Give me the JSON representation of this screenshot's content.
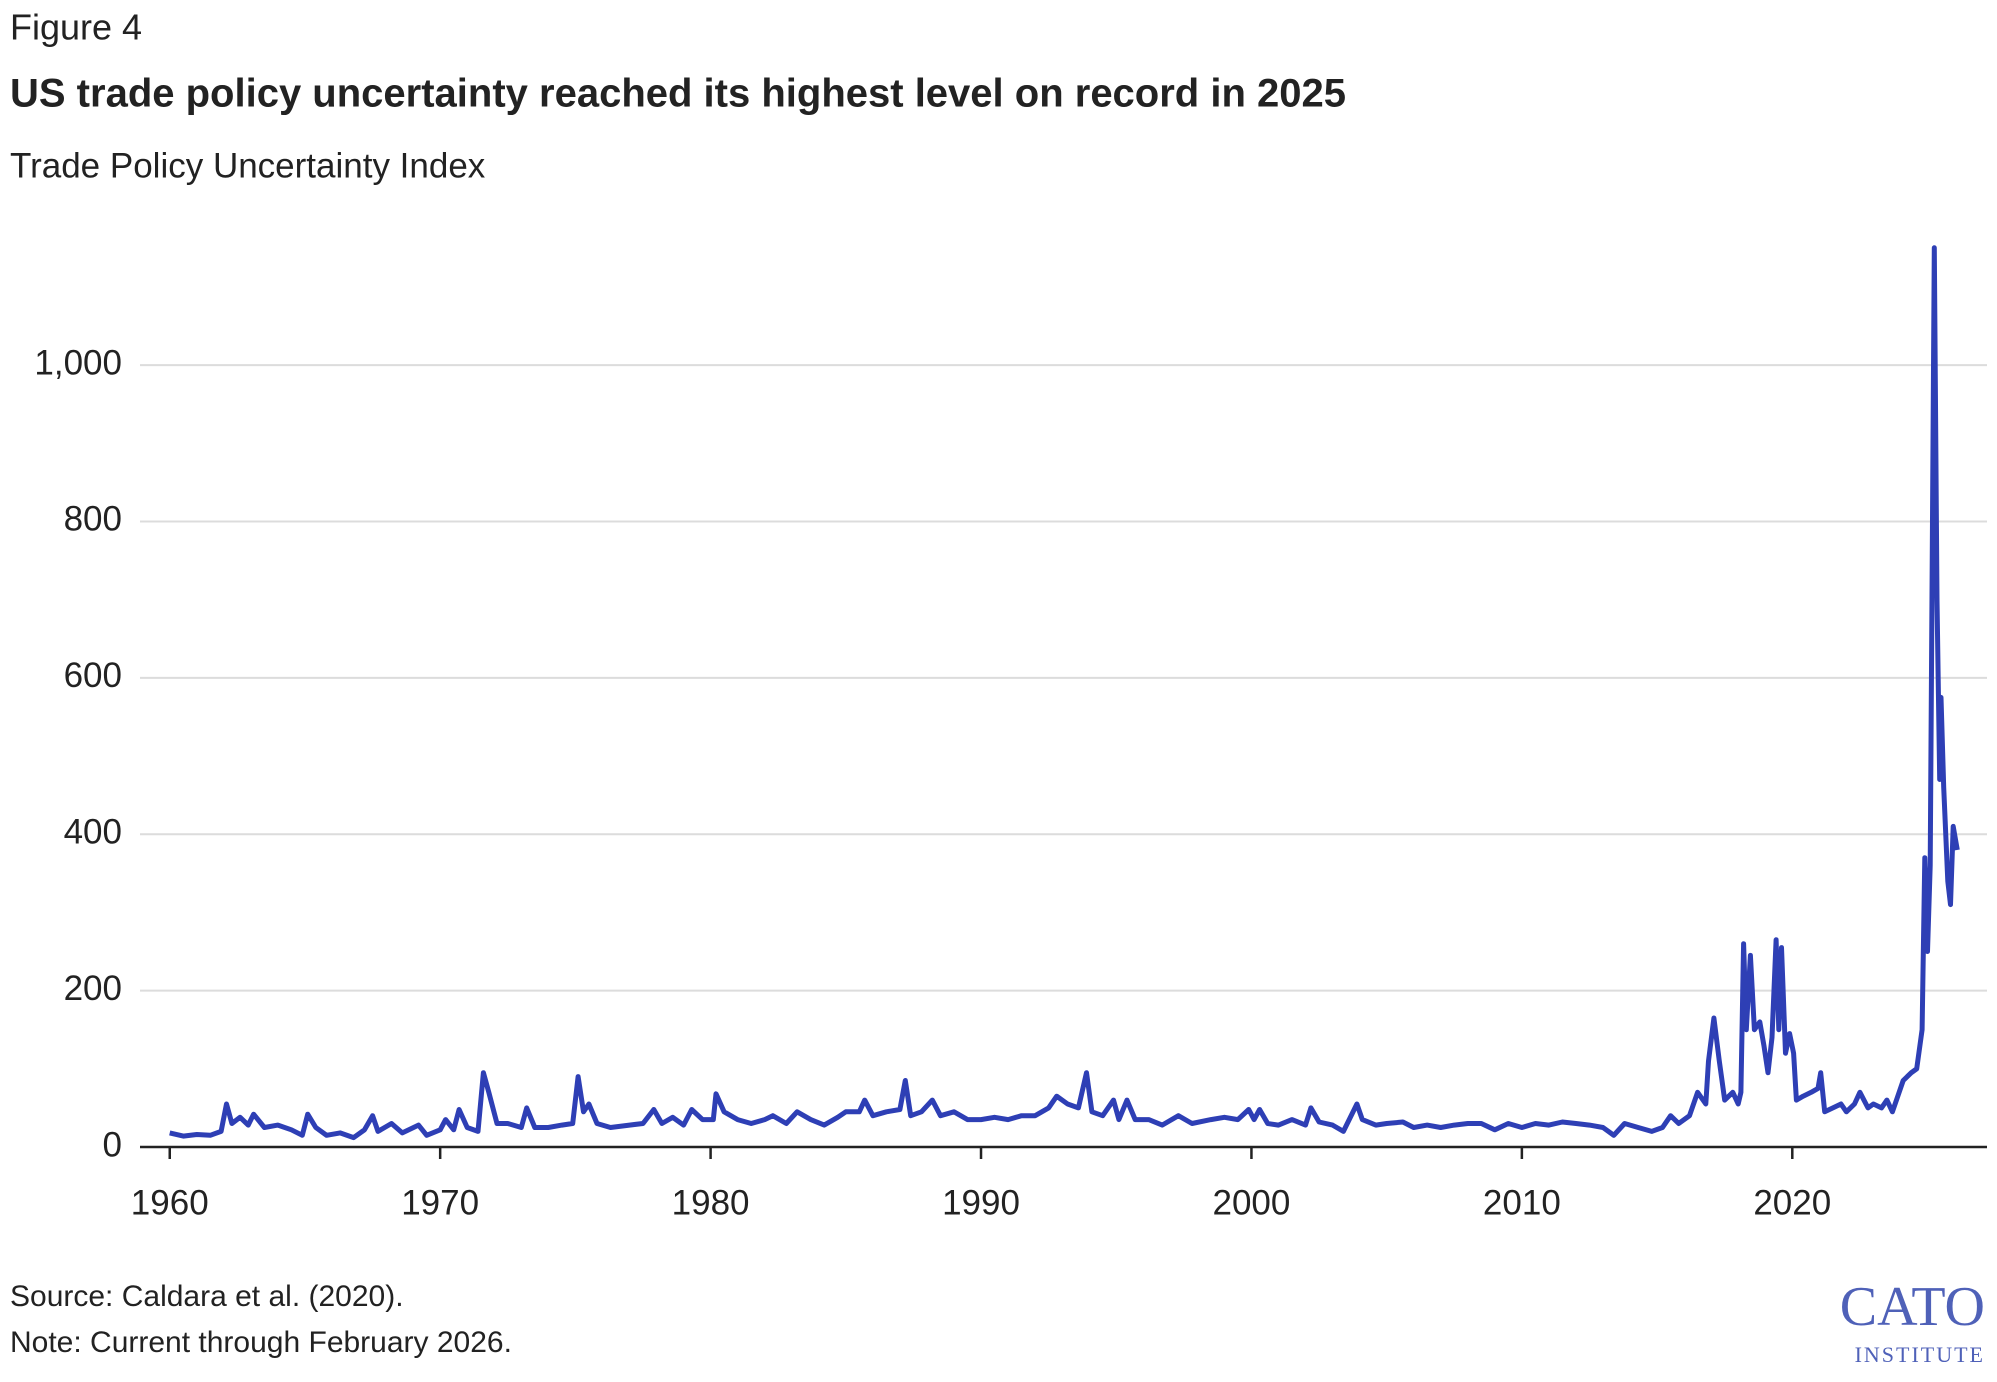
{
  "figure_label": "Figure 4",
  "chart_data": {
    "type": "line",
    "title": "US trade policy uncertainty reached its highest level on record in 2025",
    "subtitle": "Trade Policy Uncertainty Index",
    "x": [
      1960,
      1960.5,
      1961,
      1961.5,
      1961.9,
      1962.1,
      1962.3,
      1962.6,
      1962.9,
      1963.1,
      1963.5,
      1964,
      1964.5,
      1964.9,
      1965.1,
      1965.4,
      1965.8,
      1966.3,
      1966.8,
      1967.2,
      1967.5,
      1967.7,
      1968.2,
      1968.6,
      1969.2,
      1969.5,
      1970,
      1970.2,
      1970.5,
      1970.7,
      1971,
      1971.4,
      1971.6,
      1971.8,
      1972.1,
      1972.5,
      1973,
      1973.2,
      1973.5,
      1974,
      1974.5,
      1974.9,
      1975.1,
      1975.3,
      1975.5,
      1975.8,
      1976.3,
      1977,
      1977.5,
      1977.9,
      1978.2,
      1978.6,
      1979,
      1979.3,
      1979.7,
      1980.1,
      1980.2,
      1980.5,
      1981,
      1981.5,
      1982,
      1982.3,
      1982.8,
      1983.2,
      1983.7,
      1984.2,
      1984.7,
      1985,
      1985.5,
      1985.7,
      1986,
      1986.5,
      1987,
      1987.2,
      1987.4,
      1987.8,
      1988.2,
      1988.5,
      1989,
      1989.5,
      1990,
      1990.5,
      1991,
      1991.5,
      1992,
      1992.5,
      1992.8,
      1993.2,
      1993.6,
      1993.9,
      1994.1,
      1994.5,
      1994.9,
      1995.1,
      1995.4,
      1995.7,
      1996.2,
      1996.7,
      1997.3,
      1997.8,
      1998.5,
      1999,
      1999.5,
      1999.9,
      2000.1,
      2000.3,
      2000.6,
      2001,
      2001.5,
      2002,
      2002.2,
      2002.5,
      2003,
      2003.4,
      2003.9,
      2004.1,
      2004.6,
      2005,
      2005.6,
      2006,
      2006.5,
      2007,
      2007.5,
      2008,
      2008.5,
      2009,
      2009.5,
      2010,
      2010.5,
      2011,
      2011.5,
      2012,
      2012.5,
      2013,
      2013.4,
      2013.8,
      2014.3,
      2014.8,
      2015.2,
      2015.5,
      2015.8,
      2016.2,
      2016.5,
      2016.8,
      2016.9,
      2017.1,
      2017.3,
      2017.5,
      2017.8,
      2018.0,
      2018.1,
      2018.2,
      2018.3,
      2018.45,
      2018.6,
      2018.8,
      2018.95,
      2019.1,
      2019.25,
      2019.4,
      2019.5,
      2019.6,
      2019.75,
      2019.9,
      2020.05,
      2020.15,
      2020.4,
      2020.7,
      2020.95,
      2021.05,
      2021.2,
      2021.5,
      2021.8,
      2022,
      2022.3,
      2022.5,
      2022.8,
      2023,
      2023.3,
      2023.5,
      2023.7,
      2023.9,
      2024.1,
      2024.4,
      2024.6,
      2024.8,
      2024.9,
      2025.0,
      2025.1,
      2025.25,
      2025.35,
      2025.45,
      2025.5,
      2025.6,
      2025.75,
      2025.85,
      2025.95,
      2026.1
    ],
    "series": [
      {
        "name": "Trade Policy Uncertainty Index",
        "color": "#2e3fb5",
        "values": [
          18,
          14,
          16,
          15,
          20,
          55,
          30,
          38,
          28,
          42,
          25,
          28,
          22,
          15,
          42,
          25,
          15,
          18,
          12,
          22,
          40,
          20,
          30,
          18,
          28,
          15,
          22,
          35,
          22,
          48,
          25,
          20,
          95,
          70,
          30,
          30,
          25,
          50,
          25,
          25,
          28,
          30,
          90,
          45,
          55,
          30,
          25,
          28,
          30,
          48,
          30,
          38,
          28,
          48,
          35,
          35,
          68,
          45,
          35,
          30,
          35,
          40,
          30,
          45,
          35,
          28,
          38,
          45,
          45,
          60,
          40,
          45,
          48,
          85,
          40,
          45,
          60,
          40,
          45,
          35,
          35,
          38,
          35,
          40,
          40,
          50,
          65,
          55,
          50,
          95,
          45,
          40,
          60,
          35,
          60,
          35,
          35,
          28,
          40,
          30,
          35,
          38,
          35,
          48,
          35,
          48,
          30,
          28,
          35,
          28,
          50,
          32,
          28,
          20,
          55,
          35,
          28,
          30,
          32,
          25,
          28,
          25,
          28,
          30,
          30,
          22,
          30,
          25,
          30,
          28,
          32,
          30,
          28,
          25,
          15,
          30,
          25,
          20,
          25,
          40,
          30,
          40,
          70,
          55,
          110,
          165,
          110,
          60,
          70,
          55,
          70,
          260,
          150,
          245,
          150,
          160,
          130,
          95,
          140,
          265,
          150,
          255,
          120,
          145,
          120,
          60,
          65,
          70,
          75,
          95,
          45,
          50,
          55,
          45,
          55,
          70,
          50,
          55,
          50,
          60,
          45,
          65,
          85,
          95,
          100,
          150,
          370,
          250,
          360,
          1150,
          700,
          470,
          575,
          460,
          340,
          310,
          410,
          380
        ]
      }
    ],
    "xlim": [
      1958.9,
      2027.2
    ],
    "xticks": [
      1960,
      1970,
      1980,
      1990,
      2000,
      2010,
      2020
    ],
    "ylim": [
      0,
      1160
    ],
    "yticks": [
      0,
      200,
      400,
      600,
      800,
      {
        "value": 1000,
        "label": "1,000"
      }
    ],
    "grid": true,
    "source": "Source: Caldara et al. (2020).",
    "note": "Note: Current through February 2026."
  },
  "logo": {
    "name": "CATO",
    "sub": "INSTITUTE"
  }
}
